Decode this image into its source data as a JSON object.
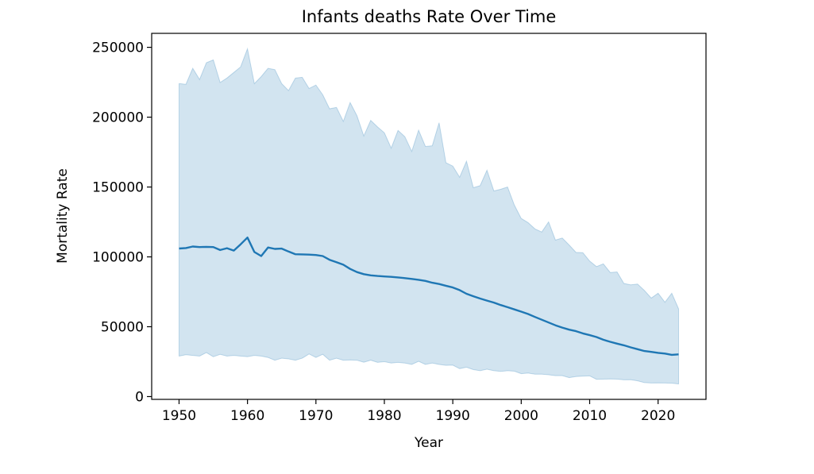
{
  "chart_data": {
    "type": "line",
    "title": "Infants deaths Rate Over Time",
    "xlabel": "Year",
    "ylabel": "Mortality Rate",
    "xlim": [
      1946,
      2027
    ],
    "ylim": [
      -2000,
      260000
    ],
    "xticks": [
      1950,
      1960,
      1970,
      1980,
      1990,
      2000,
      2010,
      2020
    ],
    "yticks": [
      0,
      50000,
      100000,
      150000,
      200000,
      250000
    ],
    "grid": false,
    "legend": "none",
    "colors": {
      "line": "#1f77b4",
      "band": "#1f77b4",
      "band_opacity": 0.2
    },
    "series": [
      {
        "x": [
          1950,
          1951,
          1952,
          1953,
          1954,
          1955,
          1956,
          1957,
          1958,
          1959,
          1960,
          1961,
          1962,
          1963,
          1964,
          1965,
          1966,
          1967,
          1968,
          1969,
          1970,
          1971,
          1972,
          1973,
          1974,
          1975,
          1976,
          1977,
          1978,
          1979,
          1980,
          1981,
          1982,
          1983,
          1984,
          1985,
          1986,
          1987,
          1988,
          1989,
          1990,
          1991,
          1992,
          1993,
          1994,
          1995,
          1996,
          1997,
          1998,
          1999,
          2000,
          2001,
          2002,
          2003,
          2004,
          2005,
          2006,
          2007,
          2008,
          2009,
          2010,
          2011,
          2012,
          2013,
          2014,
          2015,
          2016,
          2017,
          2018,
          2019,
          2020,
          2021,
          2022,
          2023
        ],
        "y": [
          106000,
          106300,
          107400,
          107000,
          107200,
          107000,
          104900,
          106200,
          104500,
          109000,
          113800,
          103500,
          100600,
          106700,
          105700,
          105900,
          103800,
          101900,
          101800,
          101600,
          101300,
          100600,
          97900,
          96200,
          94400,
          91400,
          89100,
          87600,
          86800,
          86300,
          86000,
          85700,
          85300,
          84800,
          84200,
          83600,
          82800,
          81500,
          80600,
          79300,
          78100,
          76200,
          73600,
          71800,
          70200,
          68700,
          67300,
          65500,
          64000,
          62400,
          60800,
          59100,
          57000,
          55000,
          53000,
          51000,
          49400,
          47900,
          46800,
          45200,
          44000,
          42600,
          40700,
          39200,
          37900,
          36700,
          35200,
          33900,
          32600,
          32000,
          31300,
          30800,
          29900,
          30200
        ],
        "upper": [
          224000,
          223500,
          235000,
          227000,
          239000,
          241000,
          224800,
          228000,
          232000,
          236000,
          249000,
          224000,
          229000,
          235000,
          234000,
          224000,
          219000,
          228000,
          228500,
          220500,
          223000,
          216000,
          206000,
          207000,
          197000,
          210500,
          201000,
          186500,
          197700,
          193000,
          188800,
          177800,
          190500,
          186000,
          175500,
          190700,
          179000,
          179500,
          196000,
          167400,
          165000,
          157000,
          168500,
          149500,
          151000,
          162000,
          147200,
          148400,
          150000,
          137000,
          127500,
          124500,
          120000,
          117800,
          125000,
          112000,
          113500,
          108500,
          103200,
          103000,
          97000,
          93000,
          95000,
          88800,
          89200,
          81000,
          80000,
          80500,
          76000,
          70500,
          74000,
          67500,
          74000,
          62800
        ],
        "lower": [
          29000,
          30000,
          29500,
          29000,
          31500,
          28500,
          30200,
          29000,
          29500,
          29000,
          28500,
          29500,
          29000,
          28000,
          26000,
          27500,
          27000,
          26000,
          27500,
          30500,
          28000,
          30300,
          26000,
          27500,
          26000,
          26200,
          26000,
          24600,
          26000,
          24500,
          25000,
          24000,
          24500,
          24000,
          23000,
          25200,
          23000,
          24000,
          23000,
          22400,
          22500,
          20000,
          21000,
          19300,
          18500,
          19600,
          18500,
          18000,
          18500,
          18200,
          16400,
          16800,
          16000,
          16000,
          15600,
          15000,
          15000,
          13600,
          14300,
          14600,
          14800,
          12400,
          12500,
          12600,
          12500,
          12000,
          12100,
          11300,
          10000,
          9700,
          9800,
          9700,
          9600,
          9000
        ]
      }
    ]
  }
}
